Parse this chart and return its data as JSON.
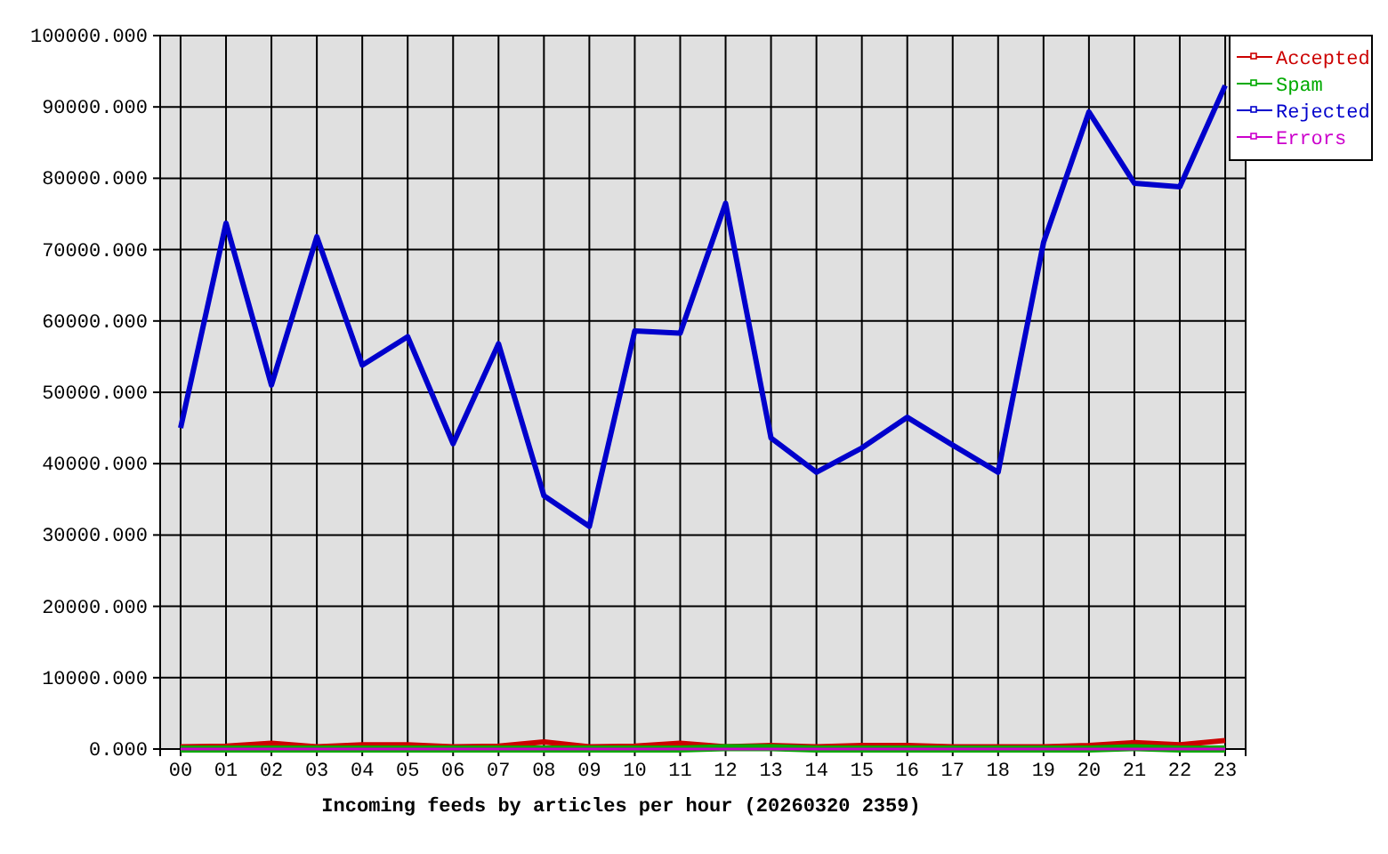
{
  "chart_data": {
    "type": "line",
    "xlabel": "Incoming feeds by articles per hour (20260320 2359)",
    "categories": [
      "00",
      "01",
      "02",
      "03",
      "04",
      "05",
      "06",
      "07",
      "08",
      "09",
      "10",
      "11",
      "12",
      "13",
      "14",
      "15",
      "16",
      "17",
      "18",
      "19",
      "20",
      "21",
      "22",
      "23"
    ],
    "series": [
      {
        "name": "Accepted",
        "color": "#cc0000",
        "values": [
          300,
          400,
          800,
          300,
          600,
          600,
          300,
          400,
          1000,
          300,
          400,
          800,
          300,
          500,
          300,
          500,
          500,
          300,
          300,
          300,
          500,
          900,
          600,
          1200
        ]
      },
      {
        "name": "Spam",
        "color": "#00aa00",
        "values": [
          0,
          0,
          0,
          0,
          0,
          0,
          0,
          0,
          0,
          0,
          0,
          0,
          200,
          200,
          0,
          0,
          0,
          0,
          0,
          0,
          0,
          200,
          0,
          0
        ]
      },
      {
        "name": "Rejected",
        "color": "#0000cc",
        "values": [
          45000,
          73700,
          51000,
          71800,
          53800,
          57800,
          42800,
          56800,
          35500,
          31200,
          58600,
          58300,
          76500,
          43600,
          38800,
          42200,
          46500,
          42600,
          38800,
          71000,
          89300,
          79300,
          78800,
          93000
        ]
      },
      {
        "name": "Errors",
        "color": "#cc00cc",
        "values": [
          0,
          0,
          0,
          0,
          0,
          0,
          0,
          0,
          0,
          0,
          0,
          0,
          0,
          0,
          0,
          0,
          0,
          0,
          0,
          0,
          0,
          0,
          0,
          0
        ]
      }
    ],
    "ylim": [
      0,
      100000
    ],
    "yticks": [
      {
        "value": 0,
        "label": "0.000"
      },
      {
        "value": 10000,
        "label": "10000.000"
      },
      {
        "value": 20000,
        "label": "20000.000"
      },
      {
        "value": 30000,
        "label": "30000.000"
      },
      {
        "value": 40000,
        "label": "40000.000"
      },
      {
        "value": 50000,
        "label": "50000.000"
      },
      {
        "value": 60000,
        "label": "60000.000"
      },
      {
        "value": 70000,
        "label": "70000.000"
      },
      {
        "value": 80000,
        "label": "80000.000"
      },
      {
        "value": 90000,
        "label": "90000.000"
      },
      {
        "value": 100000,
        "label": "100000.000"
      }
    ],
    "grid": true,
    "legend": "right"
  }
}
